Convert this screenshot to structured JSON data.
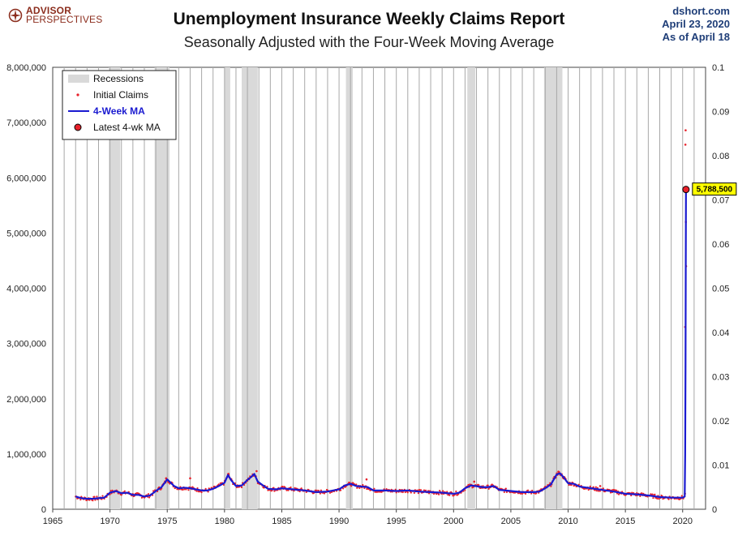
{
  "header": {
    "logo_line1": "ADVISOR",
    "logo_line2": "PERSPECTIVES",
    "title": "Unemployment Insurance Weekly Claims Report",
    "subtitle": "Seasonally Adjusted with the Four-Week Moving Average",
    "source": "dshort.com",
    "date": "April 23, 2020",
    "as_of": "As of April 18"
  },
  "colors": {
    "ma_line": "#1a1ad0",
    "claims_dots": "#e8202a",
    "recession_band": "#d9d9d9",
    "callout_bg": "#ffff00",
    "latest_marker": "#e8202a"
  },
  "chart_data": {
    "type": "line",
    "title": "Unemployment Insurance Weekly Claims Report",
    "subtitle": "Seasonally Adjusted with the Four-Week Moving Average",
    "x_range": [
      1965,
      2022
    ],
    "y_range": [
      0,
      8000000
    ],
    "y2_range": [
      0,
      0.1
    ],
    "x_ticks": [
      "1965",
      "1970",
      "1975",
      "1980",
      "1985",
      "1990",
      "1995",
      "2000",
      "2005",
      "2010",
      "2015",
      "2020"
    ],
    "y_ticks": [
      "0",
      "1,000,000",
      "2,000,000",
      "3,000,000",
      "4,000,000",
      "5,000,000",
      "6,000,000",
      "7,000,000",
      "8,000,000"
    ],
    "y2_ticks": [
      "0",
      "0.01",
      "0.02",
      "0.03",
      "0.04",
      "0.05",
      "0.06",
      "0.07",
      "0.08",
      "0.09",
      "0.1"
    ],
    "grid": "vertical",
    "legend_position": "top-left",
    "legend": [
      "Recessions",
      "Initial Claims",
      "4-Week MA",
      "Latest 4-wk MA"
    ],
    "recessions": [
      [
        1969.9,
        1970.9
      ],
      [
        1973.9,
        1975.2
      ],
      [
        1980.0,
        1980.5
      ],
      [
        1981.5,
        1982.9
      ],
      [
        1990.6,
        1991.2
      ],
      [
        2001.2,
        2001.9
      ],
      [
        2007.9,
        2009.5
      ]
    ],
    "series": [
      {
        "name": "4-Week MA",
        "x": [
          1967.0,
          1967.5,
          1968.0,
          1968.5,
          1969.0,
          1969.5,
          1970.0,
          1970.5,
          1971.0,
          1971.5,
          1972.0,
          1972.5,
          1973.0,
          1973.5,
          1974.0,
          1974.5,
          1975.0,
          1975.3,
          1975.6,
          1976.0,
          1976.5,
          1977.0,
          1977.5,
          1978.0,
          1978.5,
          1979.0,
          1979.5,
          1980.0,
          1980.3,
          1980.6,
          1981.0,
          1981.5,
          1982.0,
          1982.3,
          1982.6,
          1982.9,
          1983.3,
          1983.8,
          1984.5,
          1985.0,
          1985.5,
          1986.0,
          1987.0,
          1988.0,
          1989.0,
          1990.0,
          1990.5,
          1991.0,
          1991.5,
          1992.0,
          1992.5,
          1993.0,
          1994.0,
          1995.0,
          1996.0,
          1997.0,
          1998.0,
          1999.0,
          2000.0,
          2000.5,
          2001.0,
          2001.5,
          2001.9,
          2002.5,
          2003.0,
          2003.5,
          2004.0,
          2005.0,
          2006.0,
          2007.0,
          2007.5,
          2008.0,
          2008.5,
          2009.0,
          2009.3,
          2009.6,
          2010.0,
          2010.5,
          2011.0,
          2012.0,
          2013.0,
          2014.0,
          2015.0,
          2016.0,
          2017.0,
          2018.0,
          2019.0,
          2020.0,
          2020.18,
          2020.22,
          2020.25,
          2020.27,
          2020.29
        ],
        "values": [
          230000,
          200000,
          190000,
          190000,
          200000,
          210000,
          300000,
          330000,
          290000,
          300000,
          260000,
          260000,
          230000,
          250000,
          330000,
          400000,
          540000,
          480000,
          420000,
          380000,
          390000,
          380000,
          360000,
          340000,
          340000,
          370000,
          420000,
          480000,
          620000,
          520000,
          420000,
          430000,
          530000,
          580000,
          640000,
          500000,
          440000,
          370000,
          360000,
          380000,
          370000,
          360000,
          340000,
          310000,
          320000,
          360000,
          430000,
          460000,
          420000,
          410000,
          400000,
          340000,
          340000,
          330000,
          340000,
          320000,
          310000,
          300000,
          280000,
          300000,
          380000,
          430000,
          420000,
          400000,
          400000,
          420000,
          350000,
          330000,
          310000,
          310000,
          320000,
          380000,
          450000,
          630000,
          650000,
          580000,
          470000,
          460000,
          410000,
          380000,
          350000,
          320000,
          280000,
          270000,
          250000,
          220000,
          210000,
          210000,
          230000,
          1000000,
          2600000,
          4300000,
          5788500
        ]
      },
      {
        "name": "Initial Claims",
        "x": [
          1974.9,
          1977.0,
          1980.35,
          1982.8,
          1992.4,
          2001.8,
          2009.15,
          2012.8,
          2020.2,
          2020.22,
          2020.24,
          2020.26,
          2020.28,
          2020.3
        ],
        "values": [
          560000,
          560000,
          640000,
          690000,
          540000,
          500000,
          680000,
          420000,
          282000,
          3300000,
          6600000,
          6860000,
          5200000,
          4400000
        ]
      }
    ],
    "latest": {
      "label": "5,788,500",
      "x": 2020.29,
      "value": 5788500
    }
  }
}
